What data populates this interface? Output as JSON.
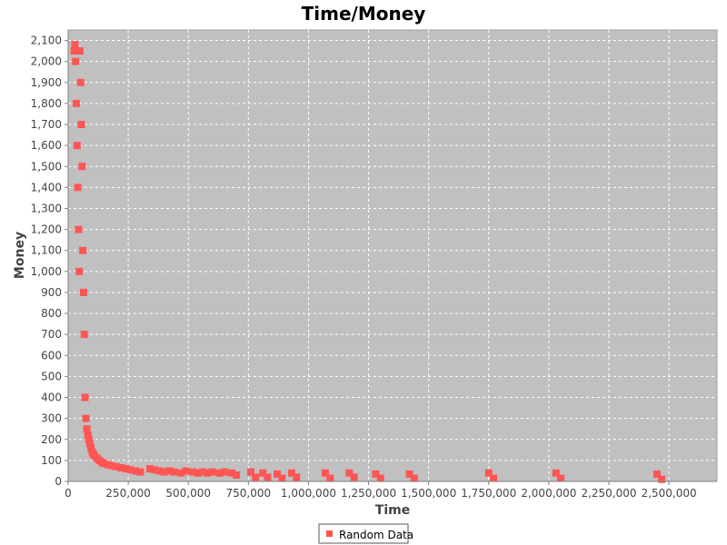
{
  "chart_data": {
    "type": "scatter",
    "title": "Time/Money",
    "xlabel": "Time",
    "ylabel": "Money",
    "xlim": [
      0,
      2700000
    ],
    "ylim": [
      0,
      2150
    ],
    "x_ticks": [
      0,
      250000,
      500000,
      750000,
      1000000,
      1250000,
      1500000,
      1750000,
      2000000,
      2250000,
      2500000
    ],
    "x_tick_labels": [
      "0",
      "250,000",
      "500,000",
      "750,000",
      "1,000,000",
      "1,250,000",
      "1,500,000",
      "1,750,000",
      "2,000,000",
      "2,250,000",
      "2,500,000"
    ],
    "y_ticks": [
      0,
      100,
      200,
      300,
      400,
      500,
      600,
      700,
      800,
      900,
      1000,
      1100,
      1200,
      1300,
      1400,
      1500,
      1600,
      1700,
      1800,
      1900,
      2000,
      2100
    ],
    "y_tick_labels": [
      "0",
      "100",
      "200",
      "300",
      "400",
      "500",
      "600",
      "700",
      "800",
      "900",
      "1,000",
      "1,100",
      "1,200",
      "1,300",
      "1,400",
      "1,500",
      "1,600",
      "1,700",
      "1,800",
      "1,900",
      "2,000",
      "2,100"
    ],
    "grid": true,
    "legend_position": "bottom-center",
    "colors": {
      "series": "#ff5555",
      "plot_background": "#c0c0c0",
      "grid": "#ffffff"
    },
    "series": [
      {
        "name": "Random Data",
        "x": [
          25000,
          28000,
          31000,
          34000,
          37000,
          40000,
          43000,
          46000,
          49000,
          52000,
          55000,
          58000,
          61000,
          64000,
          67000,
          70000,
          74000,
          78000,
          82000,
          86000,
          90000,
          95000,
          100000,
          105000,
          110000,
          120000,
          130000,
          140000,
          150000,
          165000,
          180000,
          200000,
          220000,
          240000,
          260000,
          280000,
          300000,
          340000,
          360000,
          380000,
          400000,
          420000,
          440000,
          470000,
          490000,
          520000,
          540000,
          560000,
          580000,
          600000,
          630000,
          650000,
          680000,
          700000,
          760000,
          780000,
          810000,
          830000,
          870000,
          890000,
          930000,
          950000,
          1070000,
          1090000,
          1170000,
          1190000,
          1280000,
          1300000,
          1420000,
          1440000,
          1750000,
          1770000,
          2030000,
          2050000,
          2450000,
          2470000
        ],
        "y": [
          2050,
          2080,
          2000,
          1800,
          1600,
          1400,
          1200,
          1000,
          2050,
          1900,
          1700,
          1500,
          1100,
          900,
          700,
          400,
          300,
          250,
          220,
          200,
          180,
          160,
          140,
          130,
          120,
          110,
          100,
          90,
          85,
          80,
          75,
          70,
          65,
          60,
          55,
          50,
          45,
          60,
          55,
          50,
          45,
          50,
          45,
          40,
          50,
          45,
          40,
          45,
          40,
          45,
          40,
          45,
          40,
          30,
          45,
          20,
          40,
          20,
          35,
          15,
          40,
          20,
          40,
          15,
          40,
          20,
          35,
          15,
          35,
          15,
          40,
          15,
          40,
          15,
          35,
          10
        ]
      }
    ]
  }
}
